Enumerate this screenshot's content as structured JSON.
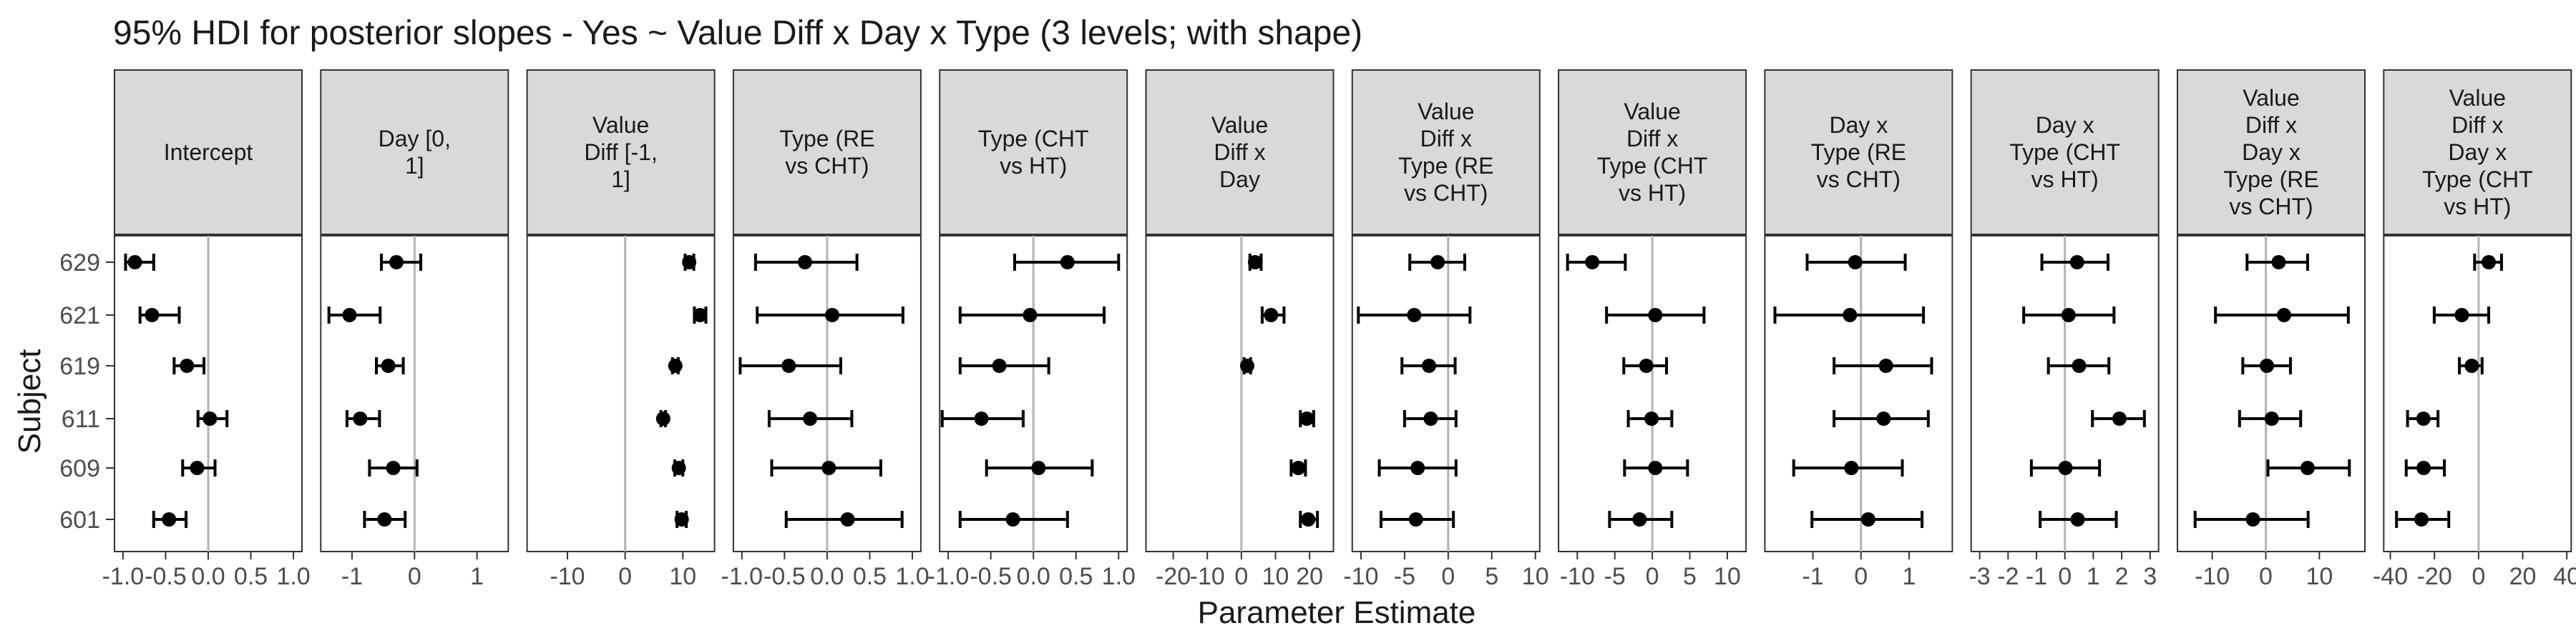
{
  "colors": {
    "strip_fill": "#d9d9d9",
    "panel_border": "#333333",
    "zero_line": "#b3b3b3",
    "point": "#000000",
    "text": "#1a1a1a",
    "tick_text": "#4d4d4d"
  },
  "chart_data": {
    "type": "scatter",
    "title": "95% HDI for posterior slopes - Yes ~ Value Diff x Day x Type (3 levels; with shape)",
    "xlabel": "Parameter Estimate",
    "ylabel": "Subject",
    "subjects": [
      "629",
      "621",
      "619",
      "611",
      "609",
      "601"
    ],
    "grid": false,
    "vline_at_zero": true,
    "panels": [
      {
        "label": [
          "Intercept"
        ],
        "xlim": [
          -1.1,
          1.1
        ],
        "ticks": [
          -1.0,
          -0.5,
          0.0,
          0.5,
          1.0
        ],
        "tick_labels": [
          "-1.0",
          "-0.5",
          "0.0",
          "0.5",
          "1.0"
        ],
        "points": [
          {
            "subject": "629",
            "est": -0.86,
            "lo": -0.97,
            "hi": -0.64
          },
          {
            "subject": "621",
            "est": -0.66,
            "lo": -0.8,
            "hi": -0.34
          },
          {
            "subject": "619",
            "est": -0.25,
            "lo": -0.4,
            "hi": -0.05
          },
          {
            "subject": "611",
            "est": 0.02,
            "lo": -0.12,
            "hi": 0.22
          },
          {
            "subject": "609",
            "est": -0.13,
            "lo": -0.3,
            "hi": 0.08
          },
          {
            "subject": "601",
            "est": -0.46,
            "lo": -0.64,
            "hi": -0.26
          }
        ]
      },
      {
        "label": [
          "Day [0,",
          "1]"
        ],
        "xlim": [
          -1.5,
          1.5
        ],
        "ticks": [
          -1,
          0,
          1
        ],
        "tick_labels": [
          "-1",
          "0",
          "1"
        ],
        "points": [
          {
            "subject": "629",
            "est": -0.29,
            "lo": -0.53,
            "hi": 0.1
          },
          {
            "subject": "621",
            "est": -1.04,
            "lo": -1.37,
            "hi": -0.55
          },
          {
            "subject": "619",
            "est": -0.42,
            "lo": -0.61,
            "hi": -0.18
          },
          {
            "subject": "611",
            "est": -0.87,
            "lo": -1.08,
            "hi": -0.56
          },
          {
            "subject": "609",
            "est": -0.34,
            "lo": -0.72,
            "hi": 0.04
          },
          {
            "subject": "601",
            "est": -0.48,
            "lo": -0.8,
            "hi": -0.15
          }
        ]
      },
      {
        "label": [
          "Value",
          "Diff [-1,",
          "1]"
        ],
        "xlim": [
          -17,
          15.5
        ],
        "ticks": [
          -10,
          0,
          10
        ],
        "tick_labels": [
          "-10",
          "0",
          "10"
        ],
        "points": [
          {
            "subject": "629",
            "est": 11.1,
            "lo": 10.4,
            "hi": 11.9
          },
          {
            "subject": "621",
            "est": 13.0,
            "lo": 12.0,
            "hi": 14.0
          },
          {
            "subject": "619",
            "est": 8.7,
            "lo": 8.2,
            "hi": 9.2
          },
          {
            "subject": "611",
            "est": 6.6,
            "lo": 6.2,
            "hi": 7.0
          },
          {
            "subject": "609",
            "est": 9.3,
            "lo": 8.6,
            "hi": 10.0
          },
          {
            "subject": "601",
            "est": 9.8,
            "lo": 9.0,
            "hi": 10.6
          }
        ]
      },
      {
        "label": [
          "Type (RE",
          "vs CHT)"
        ],
        "xlim": [
          -1.1,
          1.1
        ],
        "ticks": [
          -1.0,
          -0.5,
          0.0,
          0.5,
          1.0
        ],
        "tick_labels": [
          "-1.0",
          "-0.5",
          "0.0",
          "0.5",
          "1.0"
        ],
        "points": [
          {
            "subject": "629",
            "est": -0.26,
            "lo": -0.84,
            "hi": 0.35
          },
          {
            "subject": "621",
            "est": 0.06,
            "lo": -0.82,
            "hi": 0.89
          },
          {
            "subject": "619",
            "est": -0.45,
            "lo": -1.02,
            "hi": 0.16
          },
          {
            "subject": "611",
            "est": -0.2,
            "lo": -0.68,
            "hi": 0.29
          },
          {
            "subject": "609",
            "est": 0.02,
            "lo": -0.65,
            "hi": 0.63
          },
          {
            "subject": "601",
            "est": 0.24,
            "lo": -0.48,
            "hi": 0.88
          }
        ]
      },
      {
        "label": [
          "Type (CHT",
          "vs HT)"
        ],
        "xlim": [
          -1.1,
          1.1
        ],
        "ticks": [
          -1.0,
          -0.5,
          0.0,
          0.5,
          1.0
        ],
        "tick_labels": [
          "-1.0",
          "-0.5",
          "0.0",
          "0.5",
          "1.0"
        ],
        "points": [
          {
            "subject": "629",
            "est": 0.4,
            "lo": -0.22,
            "hi": 1.0
          },
          {
            "subject": "621",
            "est": -0.04,
            "lo": -0.86,
            "hi": 0.83
          },
          {
            "subject": "619",
            "est": -0.4,
            "lo": -0.86,
            "hi": 0.18
          },
          {
            "subject": "611",
            "est": -0.61,
            "lo": -1.07,
            "hi": -0.12
          },
          {
            "subject": "609",
            "est": 0.06,
            "lo": -0.55,
            "hi": 0.69
          },
          {
            "subject": "601",
            "est": -0.24,
            "lo": -0.86,
            "hi": 0.4
          }
        ]
      },
      {
        "label": [
          "Value",
          "Diff x",
          "Day"
        ],
        "xlim": [
          -28,
          27
        ],
        "ticks": [
          -20,
          -10,
          0,
          10,
          20
        ],
        "tick_labels": [
          "-20",
          "-10",
          "0",
          "10",
          "20"
        ],
        "points": [
          {
            "subject": "629",
            "est": 4.0,
            "lo": 2.5,
            "hi": 5.8
          },
          {
            "subject": "621",
            "est": 8.7,
            "lo": 6.1,
            "hi": 12.5
          },
          {
            "subject": "619",
            "est": 1.7,
            "lo": 0.8,
            "hi": 2.7
          },
          {
            "subject": "611",
            "est": 19.2,
            "lo": 17.3,
            "hi": 21.2
          },
          {
            "subject": "609",
            "est": 16.7,
            "lo": 14.6,
            "hi": 18.8
          },
          {
            "subject": "601",
            "est": 19.6,
            "lo": 17.3,
            "hi": 22.3
          }
        ]
      },
      {
        "label": [
          "Value",
          "Diff x",
          "Type (RE",
          "vs CHT)"
        ],
        "xlim": [
          -11,
          10.5
        ],
        "ticks": [
          -10,
          -5,
          0,
          5,
          10
        ],
        "tick_labels": [
          "-10",
          "-5",
          "0",
          "5",
          "10"
        ],
        "points": [
          {
            "subject": "629",
            "est": -1.2,
            "lo": -4.4,
            "hi": 1.9
          },
          {
            "subject": "621",
            "est": -3.9,
            "lo": -10.3,
            "hi": 2.5
          },
          {
            "subject": "619",
            "est": -2.2,
            "lo": -5.3,
            "hi": 0.8
          },
          {
            "subject": "611",
            "est": -2.0,
            "lo": -5.0,
            "hi": 0.9
          },
          {
            "subject": "609",
            "est": -3.5,
            "lo": -7.9,
            "hi": 0.9
          },
          {
            "subject": "601",
            "est": -3.7,
            "lo": -7.7,
            "hi": 0.6
          }
        ]
      },
      {
        "label": [
          "Value",
          "Diff x",
          "Type (CHT",
          "vs HT)"
        ],
        "xlim": [
          -12.5,
          12.5
        ],
        "ticks": [
          -10,
          -5,
          0,
          5,
          10
        ],
        "tick_labels": [
          "-10",
          "-5",
          "0",
          "5",
          "10"
        ],
        "points": [
          {
            "subject": "629",
            "est": -8.0,
            "lo": -11.3,
            "hi": -3.6
          },
          {
            "subject": "621",
            "est": 0.4,
            "lo": -6.1,
            "hi": 6.9
          },
          {
            "subject": "619",
            "est": -0.8,
            "lo": -3.8,
            "hi": 1.9
          },
          {
            "subject": "611",
            "est": -0.1,
            "lo": -3.2,
            "hi": 2.6
          },
          {
            "subject": "609",
            "est": 0.4,
            "lo": -3.7,
            "hi": 4.7
          },
          {
            "subject": "601",
            "est": -1.7,
            "lo": -5.7,
            "hi": 2.6
          }
        ]
      },
      {
        "label": [
          "Day x",
          "Type (RE",
          "vs CHT)"
        ],
        "xlim": [
          -2.0,
          1.9
        ],
        "ticks": [
          -1,
          0,
          1
        ],
        "tick_labels": [
          "-1",
          "0",
          "1"
        ],
        "points": [
          {
            "subject": "629",
            "est": -0.12,
            "lo": -1.12,
            "hi": 0.92
          },
          {
            "subject": "621",
            "est": -0.23,
            "lo": -1.79,
            "hi": 1.3
          },
          {
            "subject": "619",
            "est": 0.52,
            "lo": -0.56,
            "hi": 1.47
          },
          {
            "subject": "611",
            "est": 0.47,
            "lo": -0.56,
            "hi": 1.4
          },
          {
            "subject": "609",
            "est": -0.2,
            "lo": -1.4,
            "hi": 0.86
          },
          {
            "subject": "601",
            "est": 0.15,
            "lo": -1.02,
            "hi": 1.27
          }
        ]
      },
      {
        "label": [
          "Day x",
          "Type (CHT",
          "vs HT)"
        ],
        "xlim": [
          -3.3,
          3.3
        ],
        "ticks": [
          -3,
          -2,
          -1,
          0,
          1,
          2,
          3
        ],
        "tick_labels": [
          "-3",
          "-2",
          "-1",
          "0",
          "1",
          "2",
          "3"
        ],
        "points": [
          {
            "subject": "629",
            "est": 0.43,
            "lo": -0.81,
            "hi": 1.52
          },
          {
            "subject": "621",
            "est": 0.13,
            "lo": -1.45,
            "hi": 1.73
          },
          {
            "subject": "619",
            "est": 0.5,
            "lo": -0.58,
            "hi": 1.55
          },
          {
            "subject": "611",
            "est": 1.92,
            "lo": 0.97,
            "hi": 2.8
          },
          {
            "subject": "609",
            "est": 0.02,
            "lo": -1.18,
            "hi": 1.22
          },
          {
            "subject": "601",
            "est": 0.45,
            "lo": -0.87,
            "hi": 1.81
          }
        ]
      },
      {
        "label": [
          "Value",
          "Diff x",
          "Day x",
          "Type (RE",
          "vs CHT)"
        ],
        "xlim": [
          -16.5,
          18.5
        ],
        "ticks": [
          -10,
          0,
          10
        ],
        "tick_labels": [
          "-10",
          "0",
          "10"
        ],
        "points": [
          {
            "subject": "629",
            "est": 2.4,
            "lo": -3.5,
            "hi": 7.8
          },
          {
            "subject": "621",
            "est": 3.4,
            "lo": -9.4,
            "hi": 15.4
          },
          {
            "subject": "619",
            "est": 0.2,
            "lo": -4.3,
            "hi": 4.6
          },
          {
            "subject": "611",
            "est": 1.1,
            "lo": -4.9,
            "hi": 6.5
          },
          {
            "subject": "609",
            "est": 7.8,
            "lo": 0.4,
            "hi": 15.6
          },
          {
            "subject": "601",
            "est": -2.4,
            "lo": -13.2,
            "hi": 7.9
          }
        ]
      },
      {
        "label": [
          "Value",
          "Diff x",
          "Day x",
          "Type (CHT",
          "vs HT)"
        ],
        "xlim": [
          -43,
          42
        ],
        "ticks": [
          -40,
          -20,
          0,
          20,
          40
        ],
        "tick_labels": [
          "-40",
          "-20",
          "0",
          "20",
          "40"
        ],
        "points": [
          {
            "subject": "629",
            "est": 4.6,
            "lo": -1.8,
            "hi": 10.4
          },
          {
            "subject": "621",
            "est": -7.6,
            "lo": -20.1,
            "hi": 4.6
          },
          {
            "subject": "619",
            "est": -3.1,
            "lo": -8.7,
            "hi": 1.6
          },
          {
            "subject": "611",
            "est": -25.0,
            "lo": -32.2,
            "hi": -18.4
          },
          {
            "subject": "609",
            "est": -24.9,
            "lo": -32.8,
            "hi": -15.5
          },
          {
            "subject": "601",
            "est": -25.9,
            "lo": -37.2,
            "hi": -13.5
          }
        ]
      }
    ]
  }
}
